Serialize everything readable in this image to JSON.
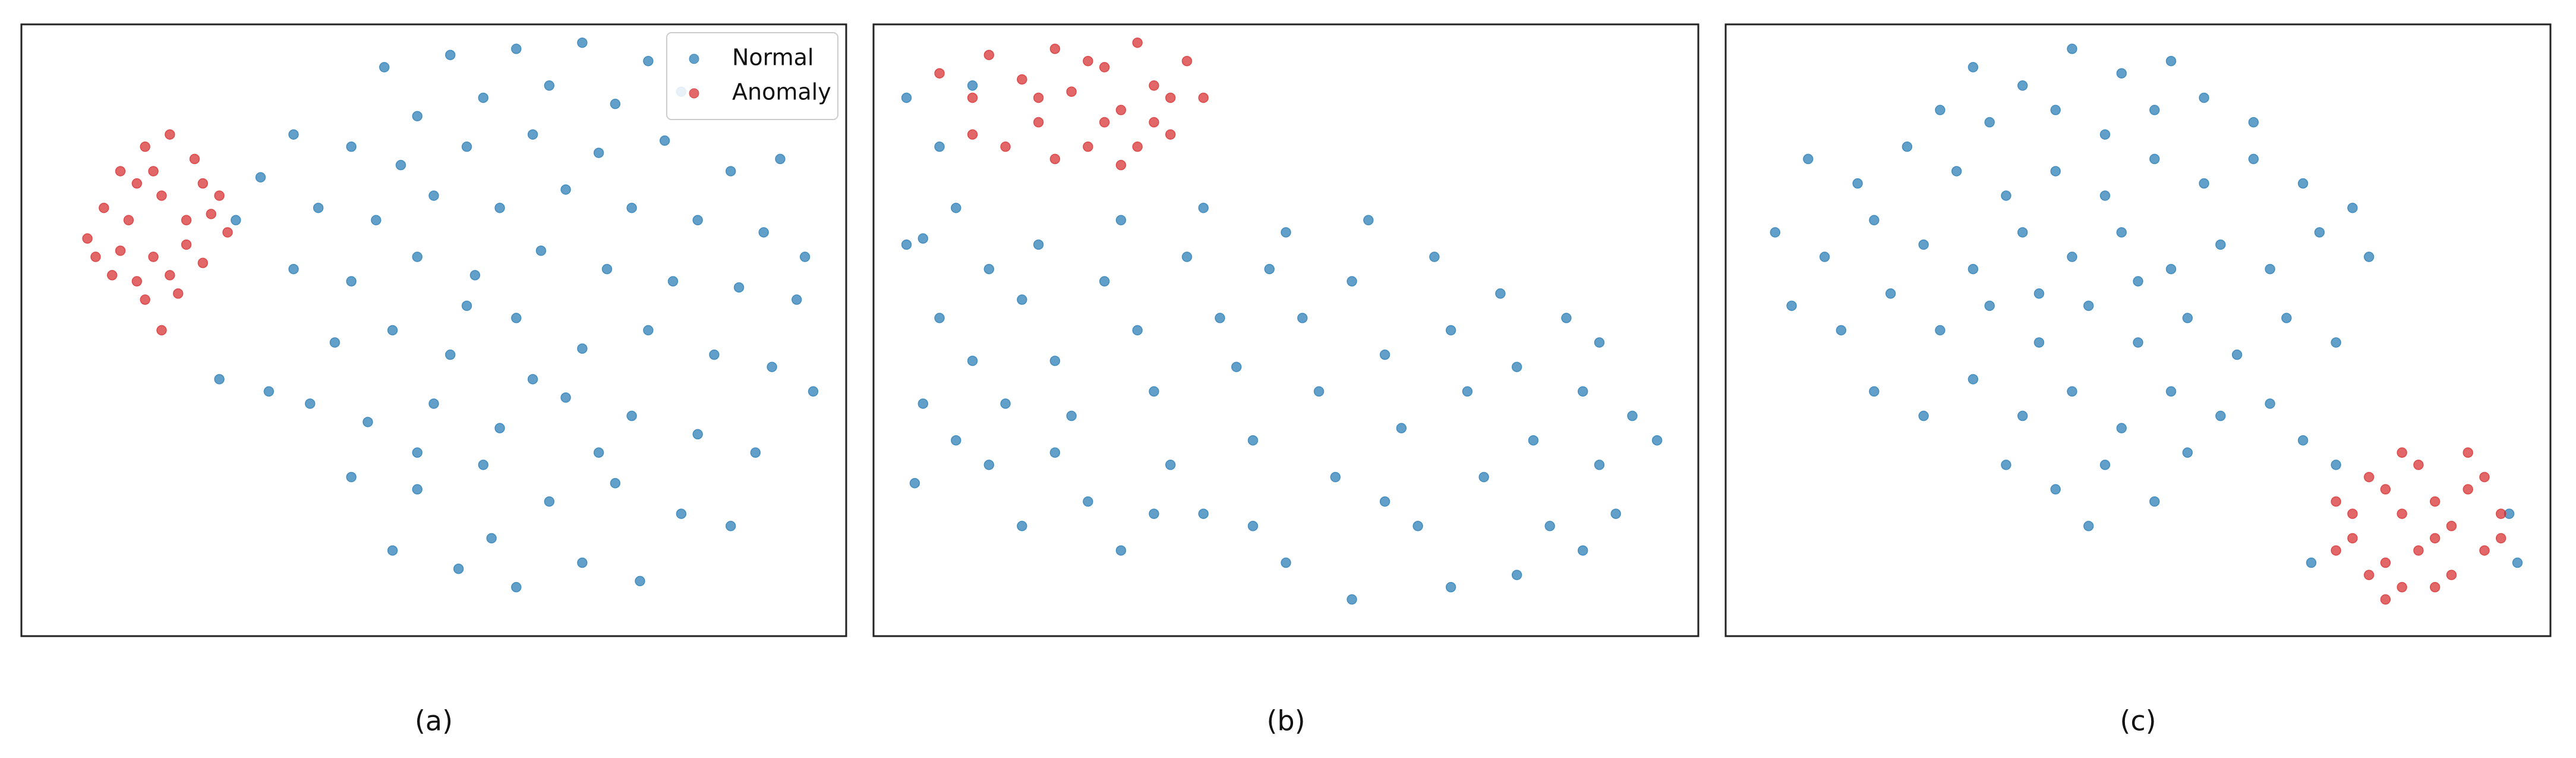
{
  "chart_data": [
    {
      "type": "scatter",
      "xlabel": "(a)",
      "xlim": [
        0,
        100
      ],
      "ylim": [
        0,
        100
      ],
      "alpha": 0.7,
      "legend": "upper right",
      "series": [
        {
          "name": "Normal",
          "color": "#1f77b4",
          "x": [
            44,
            52,
            60,
            68,
            76,
            48,
            56,
            64,
            72,
            80,
            40,
            46,
            54,
            62,
            70,
            78,
            86,
            92,
            36,
            43,
            50,
            58,
            66,
            74,
            82,
            90,
            95,
            33,
            40,
            48,
            55,
            63,
            71,
            79,
            87,
            94,
            38,
            45,
            52,
            60,
            68,
            76,
            84,
            91,
            96,
            35,
            42,
            50,
            58,
            66,
            74,
            82,
            89,
            40,
            48,
            56,
            64,
            72,
            80,
            86,
            45,
            53,
            60,
            68,
            75,
            57,
            70,
            62,
            54,
            48,
            26,
            29,
            33,
            30,
            24
          ],
          "values": [
            93,
            95,
            96,
            97,
            94,
            85,
            88,
            90,
            87,
            89,
            80,
            77,
            80,
            82,
            79,
            81,
            76,
            78,
            70,
            68,
            72,
            70,
            73,
            70,
            68,
            66,
            62,
            60,
            58,
            62,
            59,
            63,
            60,
            58,
            57,
            55,
            48,
            50,
            46,
            52,
            47,
            50,
            46,
            44,
            40,
            38,
            35,
            38,
            34,
            39,
            36,
            33,
            30,
            26,
            24,
            28,
            22,
            25,
            20,
            18,
            14,
            11,
            8,
            12,
            9,
            16,
            30,
            42,
            54,
            30,
            68,
            75,
            82,
            40,
            42
          ]
        },
        {
          "name": "Anomaly",
          "color": "#d62728",
          "x": [
            10,
            12,
            15,
            18,
            21,
            24,
            25,
            22,
            19,
            15,
            11,
            8,
            13,
            17,
            20,
            16,
            14,
            22,
            9,
            18,
            12,
            20,
            23,
            16,
            14,
            17
          ],
          "values": [
            70,
            76,
            80,
            82,
            78,
            72,
            66,
            61,
            56,
            55,
            59,
            65,
            68,
            72,
            68,
            62,
            74,
            74,
            62,
            59,
            63,
            64,
            69,
            76,
            58,
            50
          ]
        }
      ]
    },
    {
      "type": "scatter",
      "xlabel": "(b)",
      "xlim": [
        0,
        100
      ],
      "ylim": [
        0,
        100
      ],
      "alpha": 0.7,
      "series": [
        {
          "color": "#1f77b4",
          "x": [
            6,
            10,
            14,
            8,
            12,
            6,
            10,
            5,
            14,
            18,
            20,
            22,
            24,
            26,
            18,
            28,
            30,
            32,
            34,
            36,
            30,
            38,
            40,
            42,
            44,
            46,
            40,
            48,
            50,
            52,
            54,
            56,
            50,
            58,
            60,
            62,
            64,
            66,
            58,
            68,
            70,
            72,
            74,
            70,
            76,
            78,
            80,
            82,
            78,
            84,
            86,
            88,
            90,
            88,
            92,
            95,
            86,
            46,
            62,
            34,
            22,
            16,
            4,
            8,
            12,
            4
          ],
          "values": [
            65,
            70,
            60,
            52,
            45,
            38,
            32,
            25,
            28,
            55,
            64,
            45,
            36,
            22,
            18,
            58,
            68,
            50,
            40,
            28,
            14,
            62,
            70,
            52,
            44,
            32,
            20,
            60,
            66,
            52,
            40,
            26,
            12,
            58,
            68,
            46,
            34,
            18,
            6,
            62,
            50,
            40,
            26,
            8,
            56,
            44,
            32,
            18,
            10,
            52,
            40,
            28,
            20,
            48,
            36,
            32,
            14,
            18,
            22,
            20,
            30,
            38,
            88,
            80,
            90,
            64
          ]
        },
        {
          "color": "#d62728",
          "x": [
            8,
            12,
            14,
            18,
            20,
            22,
            24,
            26,
            28,
            30,
            32,
            34,
            36,
            38,
            40,
            16,
            22,
            30,
            34,
            26,
            20,
            28,
            36,
            12,
            32
          ],
          "values": [
            92,
            88,
            95,
            91,
            84,
            96,
            89,
            80,
            93,
            86,
            97,
            90,
            82,
            94,
            88,
            80,
            78,
            77,
            84,
            94,
            88,
            84,
            88,
            82,
            80
          ]
        }
      ]
    },
    {
      "type": "scatter",
      "xlabel": "(c)",
      "xlim": [
        0,
        100
      ],
      "ylim": [
        0,
        100
      ],
      "alpha": 0.7,
      "series": [
        {
          "color": "#1f77b4",
          "x": [
            30,
            36,
            42,
            48,
            54,
            26,
            32,
            40,
            46,
            52,
            58,
            64,
            10,
            16,
            22,
            28,
            34,
            40,
            46,
            52,
            58,
            64,
            70,
            76,
            6,
            12,
            18,
            24,
            30,
            36,
            42,
            48,
            54,
            60,
            66,
            72,
            78,
            8,
            14,
            20,
            26,
            32,
            38,
            44,
            50,
            56,
            62,
            68,
            74,
            18,
            24,
            30,
            36,
            42,
            48,
            54,
            60,
            66,
            34,
            40,
            46,
            52,
            44,
            56,
            38,
            50,
            70,
            74,
            71,
            95,
            96
          ],
          "values": [
            93,
            90,
            96,
            92,
            94,
            86,
            84,
            86,
            82,
            86,
            88,
            84,
            78,
            74,
            80,
            76,
            72,
            76,
            72,
            78,
            74,
            78,
            74,
            70,
            66,
            62,
            68,
            64,
            60,
            66,
            62,
            66,
            60,
            64,
            60,
            66,
            62,
            54,
            50,
            56,
            50,
            54,
            48,
            54,
            48,
            52,
            46,
            52,
            48,
            40,
            36,
            42,
            36,
            40,
            34,
            40,
            36,
            38,
            28,
            24,
            28,
            22,
            18,
            30,
            56,
            58,
            32,
            28,
            12,
            20,
            12
          ]
        },
        {
          "color": "#d62728",
          "x": [
            74,
            76,
            78,
            80,
            82,
            84,
            86,
            88,
            90,
            92,
            94,
            78,
            82,
            86,
            88,
            90,
            76,
            80,
            84,
            92,
            80,
            86,
            74,
            94,
            82
          ],
          "values": [
            22,
            16,
            26,
            12,
            20,
            28,
            8,
            18,
            24,
            14,
            20,
            10,
            30,
            22,
            10,
            30,
            20,
            24,
            14,
            26,
            6,
            16,
            14,
            16,
            8
          ]
        }
      ]
    }
  ]
}
